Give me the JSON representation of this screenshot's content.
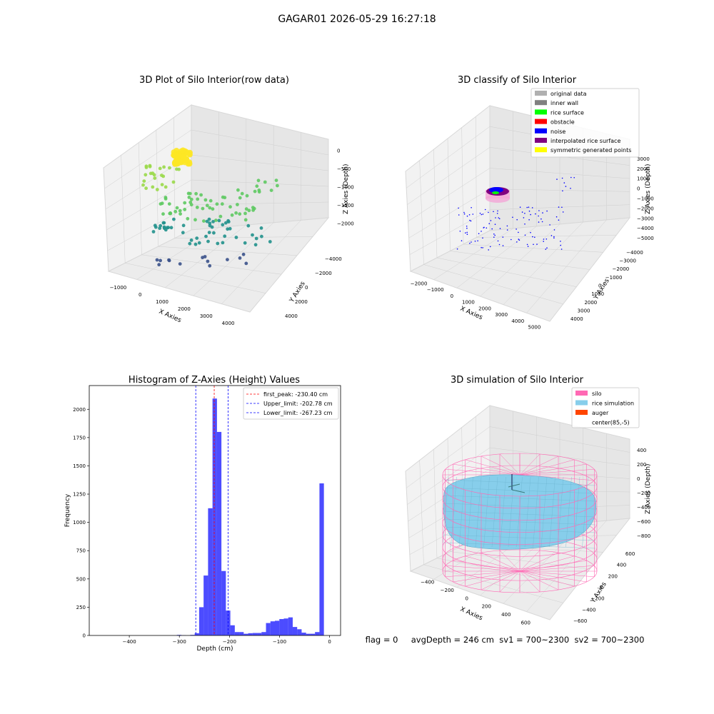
{
  "figure": {
    "suptitle": "GAGAR01 2026-05-29 16:27:18",
    "status_line": "flag = 0     avgDepth = 246 cm  sv1 = 700~2300  sv2 = 700~2300"
  },
  "colors": {
    "hist_bar": "#0000ff",
    "peak_line": "#ff0000",
    "limit_line": "#0000ff",
    "pane_left": "#f2f2f2",
    "pane_right": "#e6e6e6",
    "pane_floor": "#ececec",
    "grid": "#cfcfcf",
    "silo": "#ff69b4",
    "rice": "#87ceeb",
    "auger": "#ff4500"
  },
  "chart_data": [
    {
      "type": "scatter",
      "title": "3D Plot of Silo Interior(row data)",
      "xlabel": "X Axies",
      "ylabel": "Y Axies",
      "zlabel": "Z Axies (Depth)",
      "x_ticks": [
        "−1000",
        "0",
        "1000",
        "2000",
        "3000",
        "4000"
      ],
      "y_ticks": [
        "−4000",
        "−2000",
        "0",
        "2000",
        "4000"
      ],
      "z_ticks": [
        "−2000",
        "−1500",
        "−1000",
        "−500",
        "0"
      ],
      "xlim": [
        -1300,
        4300
      ],
      "ylim": [
        -4300,
        4300
      ],
      "zlim": [
        -2300,
        100
      ],
      "colormap": "viridis (by depth)"
    },
    {
      "type": "scatter",
      "title": "3D classify of Silo Interior",
      "xlabel": "X Axies",
      "ylabel": "Y Axies",
      "zlabel": "Z Axies (Depth)",
      "x_ticks": [
        "−2000",
        "−1000",
        "0",
        "1000",
        "2000",
        "3000",
        "4000",
        "5000"
      ],
      "y_ticks": [
        "−4000",
        "−3000",
        "−2000",
        "−1000",
        "0",
        "1000",
        "2000",
        "3000",
        "4000"
      ],
      "z_ticks": [
        "−5000",
        "−4000",
        "−3000",
        "−2000",
        "−1000",
        "0",
        "1000",
        "2000",
        "3000"
      ],
      "xlim": [
        -2300,
        5300
      ],
      "ylim": [
        -4300,
        4300
      ],
      "zlim": [
        -5300,
        3300
      ],
      "legend_position": "top-right",
      "legend": [
        {
          "name": "original data",
          "color": "#b0b0b0"
        },
        {
          "name": "inner wall",
          "color": "#808080"
        },
        {
          "name": "rice surface",
          "color": "#00ff00"
        },
        {
          "name": "obstacle",
          "color": "#ff0000"
        },
        {
          "name": "noise",
          "color": "#0000ff"
        },
        {
          "name": "interpolated rice surface",
          "color": "#800080"
        },
        {
          "name": "symmetric generated points",
          "color": "#ffff00"
        }
      ]
    },
    {
      "type": "bar",
      "title": "Histogram of Z-Axies (Height) Values",
      "xlabel": "Depth (cm)",
      "ylabel": "Frequency",
      "xlim": [
        -480,
        22
      ],
      "ylim": [
        0,
        2210
      ],
      "x_ticks": [
        -400,
        -300,
        -200,
        -100,
        0
      ],
      "y_ticks": [
        0,
        250,
        500,
        750,
        1000,
        1250,
        1500,
        1750,
        2000
      ],
      "bin_width": 8.9,
      "bins": [
        {
          "x0": -305.0,
          "count": 5
        },
        {
          "x0": -296.1,
          "count": 2
        },
        {
          "x0": -278.3,
          "count": 5
        },
        {
          "x0": -269.4,
          "count": 20
        },
        {
          "x0": -260.5,
          "count": 250
        },
        {
          "x0": -251.6,
          "count": 530
        },
        {
          "x0": -242.7,
          "count": 1125
        },
        {
          "x0": -233.8,
          "count": 2095
        },
        {
          "x0": -224.9,
          "count": 1800
        },
        {
          "x0": -216.0,
          "count": 570
        },
        {
          "x0": -207.1,
          "count": 220
        },
        {
          "x0": -198.2,
          "count": 90
        },
        {
          "x0": -189.3,
          "count": 30
        },
        {
          "x0": -180.4,
          "count": 30
        },
        {
          "x0": -171.5,
          "count": 15
        },
        {
          "x0": -162.6,
          "count": 20
        },
        {
          "x0": -153.7,
          "count": 22
        },
        {
          "x0": -144.8,
          "count": 22
        },
        {
          "x0": -135.9,
          "count": 30
        },
        {
          "x0": -127.0,
          "count": 110
        },
        {
          "x0": -118.1,
          "count": 125
        },
        {
          "x0": -109.2,
          "count": 130
        },
        {
          "x0": -100.3,
          "count": 145
        },
        {
          "x0": -91.4,
          "count": 150
        },
        {
          "x0": -82.5,
          "count": 160
        },
        {
          "x0": -73.6,
          "count": 75
        },
        {
          "x0": -64.7,
          "count": 55
        },
        {
          "x0": -55.8,
          "count": 25
        },
        {
          "x0": -46.9,
          "count": 15
        },
        {
          "x0": -38.0,
          "count": 15
        },
        {
          "x0": -29.1,
          "count": 30
        },
        {
          "x0": -20.2,
          "count": 1345
        }
      ],
      "vlines": [
        {
          "x": -230.4,
          "label": "first_peak: -230.40 cm",
          "style": "peak"
        },
        {
          "x": -202.78,
          "label": "Upper_limit: -202.78 cm",
          "style": "limit"
        },
        {
          "x": -267.23,
          "label": "Lower_limit: -267.23 cm",
          "style": "limit"
        }
      ],
      "legend_position": "top-right"
    },
    {
      "type": "other",
      "title": "3D simulation of Silo Interior",
      "xlabel": "X Axies",
      "ylabel": "Y Axies",
      "zlabel": "Z Axies (Depth)",
      "x_ticks": [
        "−400",
        "−200",
        "0",
        "200",
        "400",
        "600"
      ],
      "y_ticks": [
        "−600",
        "−400",
        "−200",
        "0",
        "200",
        "400",
        "600"
      ],
      "z_ticks": [
        "−800",
        "−600",
        "−400",
        "−200",
        "0",
        "200",
        "400"
      ],
      "xlim": [
        -600,
        700
      ],
      "ylim": [
        -700,
        700
      ],
      "zlim": [
        -900,
        450
      ],
      "legend_position": "top-right",
      "legend": [
        {
          "name": "silo",
          "color": "#ff69b4"
        },
        {
          "name": "rice simulation",
          "color": "#87ceeb"
        },
        {
          "name": "auger",
          "color": "#ff4500"
        },
        {
          "name": "center(85,-5)",
          "color": "none"
        }
      ]
    }
  ]
}
